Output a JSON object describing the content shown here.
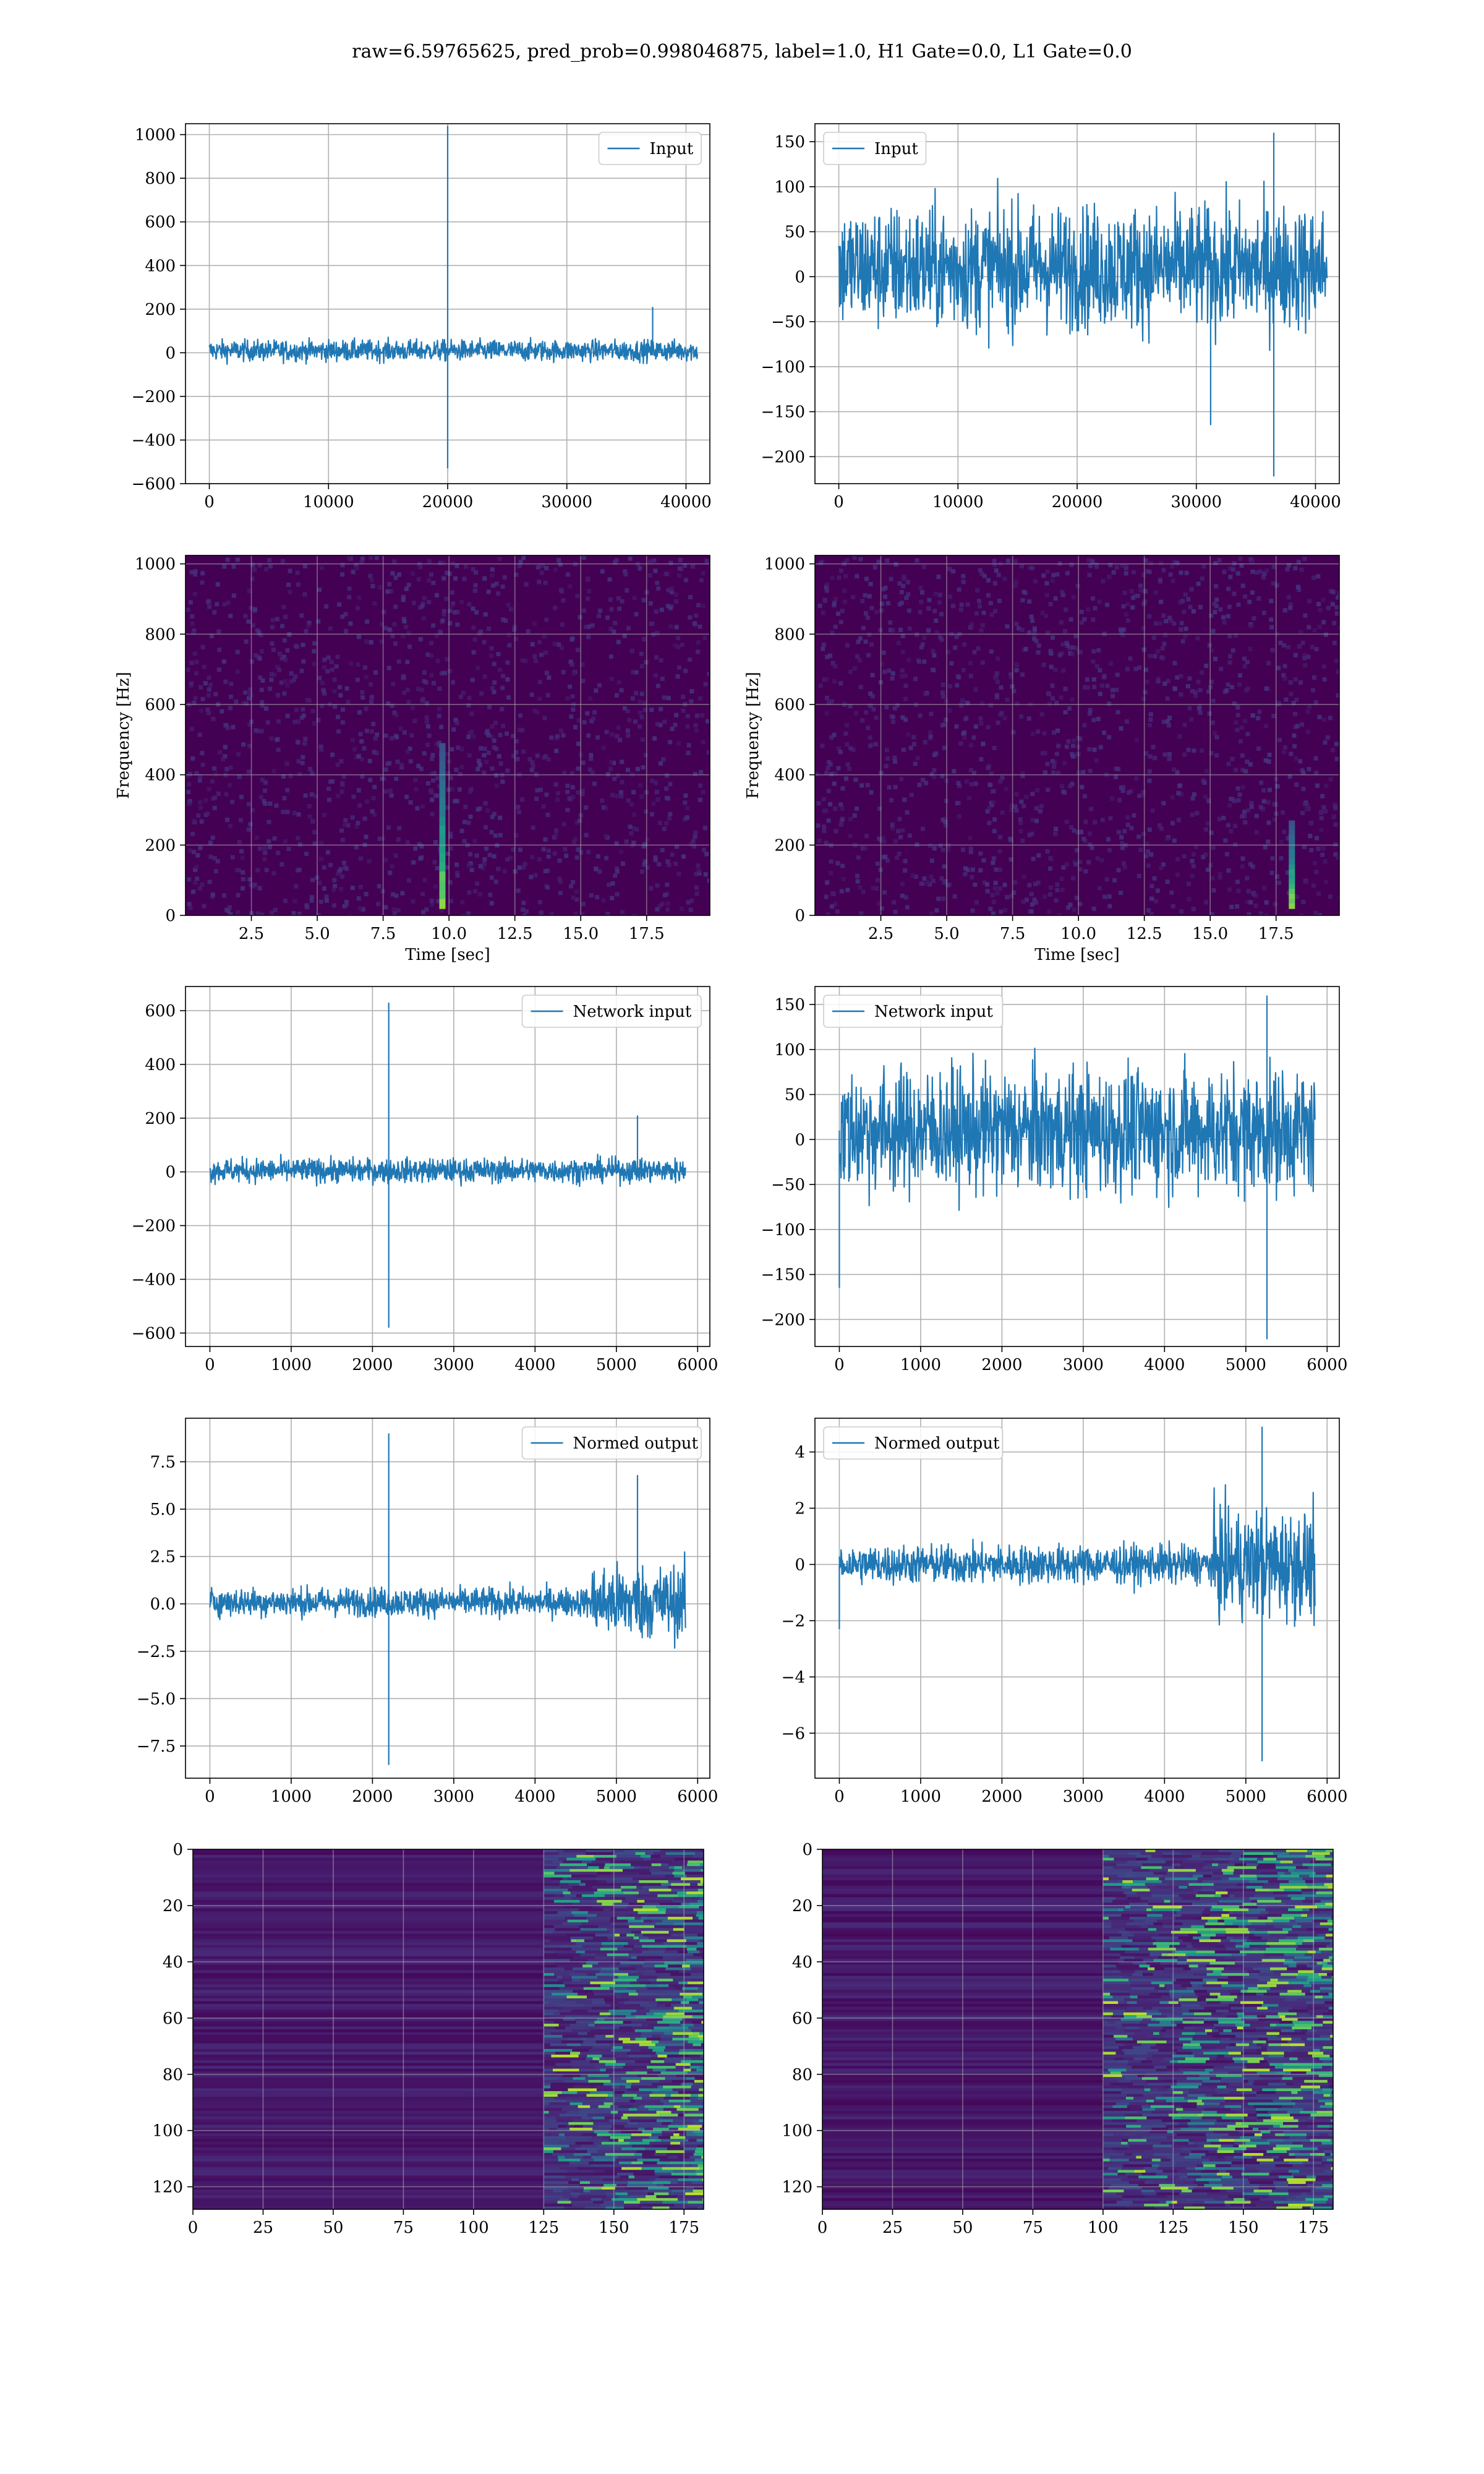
{
  "suptitle": "raw=6.59765625, pred_prob=0.998046875, label=1.0, H1 Gate=0.0, L1 Gate=0.0",
  "colors": {
    "line": "#1f77b4",
    "grid": "#b0b0b0",
    "spine": "#000000",
    "viridis_dark": "#440154"
  },
  "chart_data": [
    {
      "id": "input-h1",
      "type": "line",
      "legend": [
        "Input"
      ],
      "legend_loc": "upper right",
      "xlim": [
        -2000,
        42000
      ],
      "ylim": [
        -600,
        1050
      ],
      "xticks": [
        0,
        10000,
        20000,
        30000,
        40000
      ],
      "yticks": [
        -600,
        -400,
        -200,
        0,
        200,
        400,
        600,
        800,
        1000
      ],
      "ytick_labels": [
        "−600",
        "−400",
        "−200",
        "0",
        "200",
        "400",
        "600",
        "800",
        "1000"
      ],
      "grid": true,
      "series": [
        {
          "name": "Input",
          "x_range": [
            0,
            40960
          ],
          "noise_band": [
            -60,
            80
          ],
          "spikes": [
            {
              "x": 20000,
              "y": 1040
            },
            {
              "x": 20000,
              "y": -530
            },
            {
              "x": 37200,
              "y": 210
            }
          ]
        }
      ]
    },
    {
      "id": "input-l1",
      "type": "line",
      "legend": [
        "Input"
      ],
      "legend_loc": "upper left",
      "xlim": [
        -2000,
        42000
      ],
      "ylim": [
        -230,
        170
      ],
      "xticks": [
        0,
        10000,
        20000,
        30000,
        40000
      ],
      "yticks": [
        -200,
        -150,
        -100,
        -50,
        0,
        50,
        100,
        150
      ],
      "ytick_labels": [
        "−200",
        "−150",
        "−100",
        "−50",
        "0",
        "50",
        "100",
        "150"
      ],
      "grid": true,
      "series": [
        {
          "name": "Input",
          "x_range": [
            0,
            40960
          ],
          "noise_band": [
            -90,
            110
          ],
          "spikes": [
            {
              "x": 36500,
              "y": 160
            },
            {
              "x": 36500,
              "y": -222
            },
            {
              "x": 31200,
              "y": -165
            }
          ]
        }
      ]
    },
    {
      "id": "spectrogram-h1",
      "type": "heatmap",
      "xlabel": "Time [sec]",
      "ylabel": "Frequency [Hz]",
      "xlim": [
        0,
        19.9
      ],
      "ylim": [
        0,
        1024
      ],
      "xticks": [
        2.5,
        5.0,
        7.5,
        10.0,
        12.5,
        15.0,
        17.5
      ],
      "xtick_labels": [
        "2.5",
        "5.0",
        "7.5",
        "10.0",
        "12.5",
        "15.0",
        "17.5"
      ],
      "yticks": [
        0,
        200,
        400,
        600,
        800,
        1000
      ],
      "colormap": "viridis",
      "grid": true,
      "hotspots": [
        {
          "time": 9.75,
          "freq_range": [
            20,
            490
          ]
        }
      ]
    },
    {
      "id": "spectrogram-l1",
      "type": "heatmap",
      "xlabel": "Time [sec]",
      "ylabel": "Frequency [Hz]",
      "xlim": [
        0,
        19.9
      ],
      "ylim": [
        0,
        1024
      ],
      "xticks": [
        2.5,
        5.0,
        7.5,
        10.0,
        12.5,
        15.0,
        17.5
      ],
      "xtick_labels": [
        "2.5",
        "5.0",
        "7.5",
        "10.0",
        "12.5",
        "15.0",
        "17.5"
      ],
      "yticks": [
        0,
        200,
        400,
        600,
        800,
        1000
      ],
      "colormap": "viridis",
      "grid": true,
      "hotspots": [
        {
          "time": 18.1,
          "freq_range": [
            20,
            270
          ]
        }
      ]
    },
    {
      "id": "network-input-h1",
      "type": "line",
      "legend": [
        "Network input"
      ],
      "legend_loc": "upper right",
      "xlim": [
        -300,
        6150
      ],
      "ylim": [
        -650,
        690
      ],
      "xticks": [
        0,
        1000,
        2000,
        3000,
        4000,
        5000,
        6000
      ],
      "yticks": [
        -600,
        -400,
        -200,
        0,
        200,
        400,
        600
      ],
      "ytick_labels": [
        "−600",
        "−400",
        "−200",
        "0",
        "200",
        "400",
        "600"
      ],
      "grid": true,
      "series": [
        {
          "name": "Network input",
          "x_range": [
            0,
            5850
          ],
          "noise_band": [
            -60,
            70
          ],
          "spikes": [
            {
              "x": 2200,
              "y": 630
            },
            {
              "x": 2200,
              "y": -580
            },
            {
              "x": 5260,
              "y": 210
            }
          ]
        }
      ]
    },
    {
      "id": "network-input-l1",
      "type": "line",
      "legend": [
        "Network input"
      ],
      "legend_loc": "upper left",
      "xlim": [
        -300,
        6150
      ],
      "ylim": [
        -230,
        170
      ],
      "xticks": [
        0,
        1000,
        2000,
        3000,
        4000,
        5000,
        6000
      ],
      "yticks": [
        -200,
        -150,
        -100,
        -50,
        0,
        50,
        100,
        150
      ],
      "ytick_labels": [
        "−200",
        "−150",
        "−100",
        "−50",
        "0",
        "50",
        "100",
        "150"
      ],
      "grid": true,
      "series": [
        {
          "name": "Network input",
          "x_range": [
            0,
            5850
          ],
          "noise_band": [
            -90,
            110
          ],
          "spikes": [
            {
              "x": 5260,
              "y": 160
            },
            {
              "x": 5260,
              "y": -222
            },
            {
              "x": 0,
              "y": -165
            }
          ]
        }
      ]
    },
    {
      "id": "normed-output-h1",
      "type": "line",
      "legend": [
        "Normed output"
      ],
      "legend_loc": "upper right",
      "xlim": [
        -300,
        6150
      ],
      "ylim": [
        -9.2,
        9.8
      ],
      "xticks": [
        0,
        1000,
        2000,
        3000,
        4000,
        5000,
        6000
      ],
      "yticks": [
        -7.5,
        -5.0,
        -2.5,
        0.0,
        2.5,
        5.0,
        7.5
      ],
      "ytick_labels": [
        "−7.5",
        "−5.0",
        "−2.5",
        "0.0",
        "2.5",
        "5.0",
        "7.5"
      ],
      "grid": true,
      "series": [
        {
          "name": "Normed output",
          "x_range": [
            0,
            5850
          ],
          "noise_band": [
            -1.0,
            1.2
          ],
          "spikes": [
            {
              "x": 2200,
              "y": 9.0
            },
            {
              "x": 2200,
              "y": -8.5
            },
            {
              "x": 5260,
              "y": 6.8
            }
          ]
        }
      ]
    },
    {
      "id": "normed-output-l1",
      "type": "line",
      "legend": [
        "Normed output"
      ],
      "legend_loc": "upper left",
      "xlim": [
        -300,
        6150
      ],
      "ylim": [
        -7.6,
        5.2
      ],
      "xticks": [
        0,
        1000,
        2000,
        3000,
        4000,
        5000,
        6000
      ],
      "yticks": [
        -6,
        -4,
        -2,
        0,
        2,
        4
      ],
      "ytick_labels": [
        "−6",
        "−4",
        "−2",
        "0",
        "2",
        "4"
      ],
      "grid": true,
      "series": [
        {
          "name": "Normed output",
          "x_range": [
            0,
            5850
          ],
          "noise_band": [
            -1.0,
            1.0
          ],
          "spikes": [
            {
              "x": 5200,
              "y": 4.9
            },
            {
              "x": 5200,
              "y": -7.0
            },
            {
              "x": 0,
              "y": -2.3
            }
          ]
        }
      ]
    },
    {
      "id": "feature-map-h1",
      "type": "heatmap",
      "xlim": [
        0,
        182
      ],
      "ylim": [
        128,
        0
      ],
      "xticks": [
        0,
        25,
        50,
        75,
        100,
        125,
        150,
        175
      ],
      "yticks": [
        0,
        20,
        40,
        60,
        80,
        100,
        120
      ],
      "colormap": "viridis",
      "grid": true,
      "active_region": {
        "x_range": [
          125,
          182
        ]
      }
    },
    {
      "id": "feature-map-l1",
      "type": "heatmap",
      "xlim": [
        0,
        182
      ],
      "ylim": [
        128,
        0
      ],
      "xticks": [
        0,
        25,
        50,
        75,
        100,
        125,
        150,
        175
      ],
      "yticks": [
        0,
        20,
        40,
        60,
        80,
        100,
        120
      ],
      "colormap": "viridis",
      "grid": true,
      "active_region": {
        "x_range": [
          100,
          182
        ]
      }
    }
  ]
}
